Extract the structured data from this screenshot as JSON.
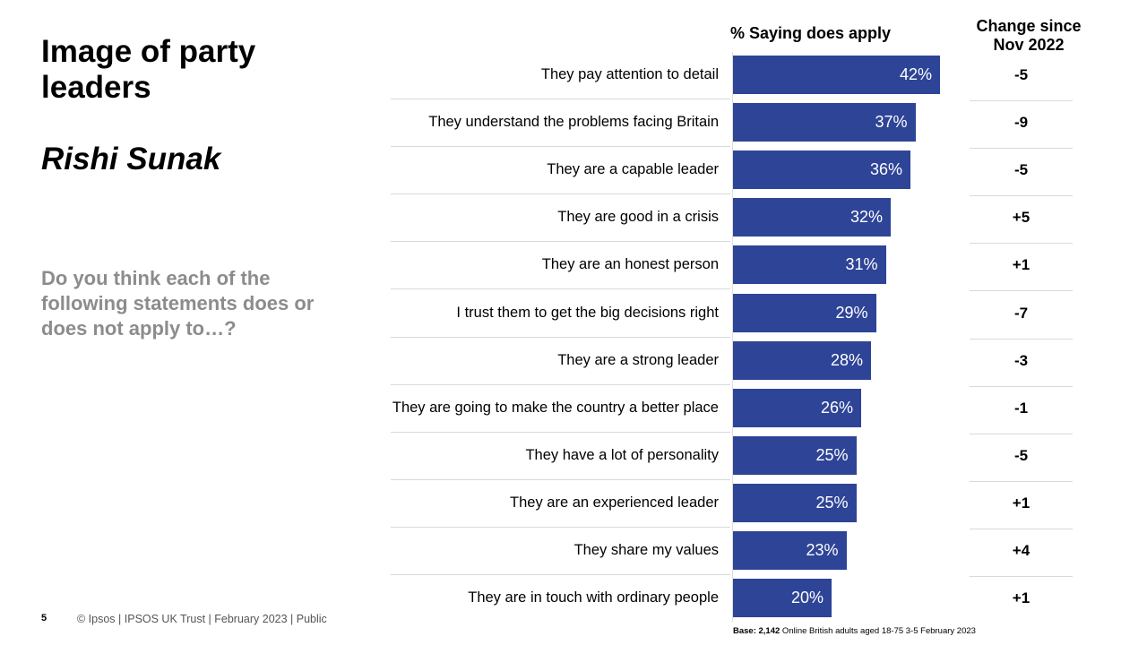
{
  "slide": {
    "title": "Image of party leaders",
    "subtitle": "Rishi Sunak",
    "question": "Do you think each of the following statements does or does not apply to…?",
    "page_number": "5",
    "footer": "© Ipsos | IPSOS UK Trust | February 2023 | Public",
    "base_bold": "Base: 2,142",
    "base_rest": " Online British adults aged 18-75 3-5 February 2023"
  },
  "colors": {
    "bar": "#2e4497"
  },
  "chart_data": {
    "type": "bar",
    "orientation": "horizontal",
    "title": "% Saying does apply",
    "change_header": "Change since Nov 2022",
    "categories": [
      "They pay attention to detail",
      "They understand the problems facing Britain",
      "They are a capable leader",
      "They are good in a crisis",
      "They are an honest person",
      "I trust them to get the big decisions right",
      "They are a strong leader",
      "They are going to make the country a better place",
      "They have a lot of personality",
      "They are an experienced leader",
      "They share my values",
      "They are in touch with ordinary people"
    ],
    "values": [
      42,
      37,
      36,
      32,
      31,
      29,
      28,
      26,
      25,
      25,
      23,
      20
    ],
    "value_labels": [
      "42%",
      "37%",
      "36%",
      "32%",
      "31%",
      "29%",
      "28%",
      "26%",
      "25%",
      "25%",
      "23%",
      "20%"
    ],
    "change": [
      "-5",
      "-9",
      "-5",
      "+5",
      "+1",
      "-7",
      "-3",
      "-1",
      "-5",
      "+1",
      "+4",
      "+1"
    ],
    "xlim": [
      0,
      100
    ]
  }
}
